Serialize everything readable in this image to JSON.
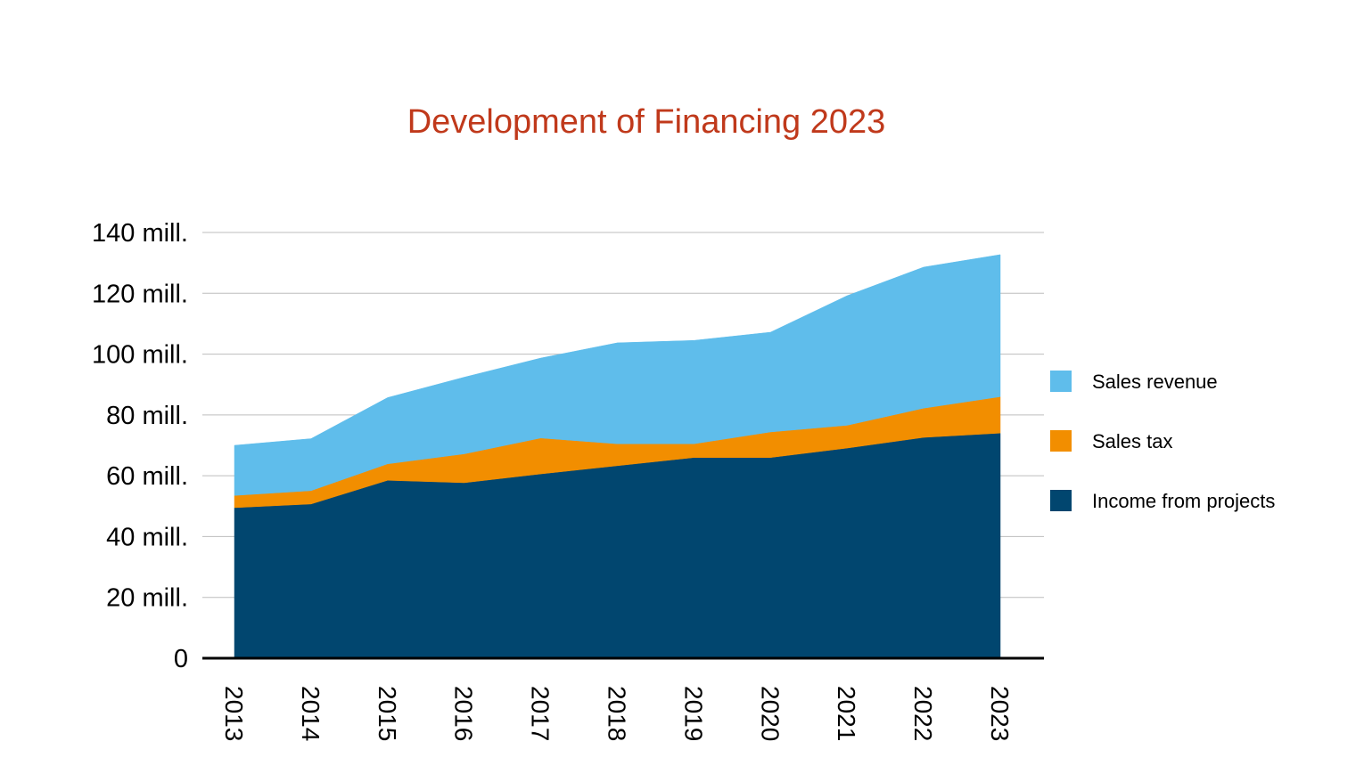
{
  "chart_data": {
    "type": "area",
    "stacked": true,
    "title": "Development of Financing 2023",
    "xlabel": "",
    "ylabel": "",
    "categories": [
      "2013",
      "2014",
      "2015",
      "2016",
      "2017",
      "2018",
      "2019",
      "2020",
      "2021",
      "2022",
      "2023"
    ],
    "series": [
      {
        "name": "Income from projects",
        "color": "#01466f",
        "values": [
          49.5,
          50.7,
          58.5,
          57.7,
          60.6,
          63.3,
          66.0,
          66.0,
          69.1,
          72.6,
          74.0
        ]
      },
      {
        "name": "Sales tax",
        "color": "#f28e00",
        "values": [
          4.0,
          4.4,
          5.4,
          9.5,
          11.8,
          7.2,
          4.5,
          8.4,
          7.5,
          9.6,
          12.0
        ]
      },
      {
        "name": "Sales revenue",
        "color": "#5fbdeb",
        "values": [
          16.5,
          17.1,
          21.8,
          25.2,
          26.3,
          33.2,
          34.0,
          32.8,
          42.6,
          46.4,
          46.7
        ]
      }
    ],
    "yticks": [
      {
        "value": 0,
        "label": "0"
      },
      {
        "value": 20,
        "label": "20 mill."
      },
      {
        "value": 40,
        "label": "40 mill."
      },
      {
        "value": 60,
        "label": "60 mill."
      },
      {
        "value": 80,
        "label": "80 mill."
      },
      {
        "value": 100,
        "label": "100 mill."
      },
      {
        "value": 120,
        "label": "120 mill."
      },
      {
        "value": 140,
        "label": "140 mill."
      }
    ],
    "ylim": [
      0,
      140
    ],
    "grid": true,
    "legend": {
      "position": "right",
      "entries": [
        {
          "label": "Sales revenue",
          "color": "#5fbdeb"
        },
        {
          "label": "Sales tax",
          "color": "#f28e00"
        },
        {
          "label": "Income from projects",
          "color": "#01466f"
        }
      ]
    }
  }
}
